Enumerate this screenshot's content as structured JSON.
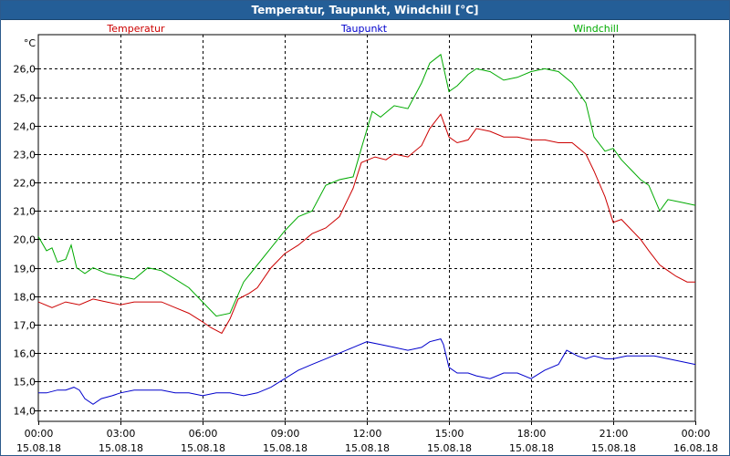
{
  "window": {
    "title": "Temperatur, Taupunkt, Windchill [°C]"
  },
  "chart_data": {
    "type": "line",
    "title": "Temperatur, Taupunkt, Windchill [°C]",
    "ylabel": "°C",
    "ylim": [
      13.6,
      27.2
    ],
    "yticks": [
      14.0,
      15.0,
      16.0,
      17.0,
      18.0,
      19.0,
      20.0,
      21.0,
      22.0,
      23.0,
      24.0,
      25.0,
      26.0
    ],
    "ytick_labels": [
      "14,0",
      "15,0",
      "16,0",
      "17,0",
      "18,0",
      "19,0",
      "20,0",
      "21,0",
      "22,0",
      "23,0",
      "24,0",
      "25,0",
      "26,0"
    ],
    "xlim": [
      0,
      24
    ],
    "xticks": [
      0,
      3,
      6,
      9,
      12,
      15,
      18,
      21,
      24
    ],
    "xtick_labels": [
      [
        "00:00",
        "15.08.18"
      ],
      [
        "03:00",
        "15.08.18"
      ],
      [
        "06:00",
        "15.08.18"
      ],
      [
        "09:00",
        "15.08.18"
      ],
      [
        "12:00",
        "15.08.18"
      ],
      [
        "15:00",
        "15.08.18"
      ],
      [
        "18:00",
        "15.08.18"
      ],
      [
        "21:00",
        "15.08.18"
      ],
      [
        "00:00",
        "16.08.18"
      ]
    ],
    "grid": true,
    "x_unit": "hours since 15.08.18 00:00",
    "series": [
      {
        "name": "Temperatur",
        "color": "#cc0000",
        "points": [
          [
            0.0,
            17.8
          ],
          [
            0.5,
            17.6
          ],
          [
            1.0,
            17.8
          ],
          [
            1.5,
            17.7
          ],
          [
            2.0,
            17.9
          ],
          [
            2.5,
            17.8
          ],
          [
            3.0,
            17.7
          ],
          [
            3.5,
            17.8
          ],
          [
            4.0,
            17.8
          ],
          [
            4.5,
            17.8
          ],
          [
            5.0,
            17.6
          ],
          [
            5.5,
            17.4
          ],
          [
            6.0,
            17.1
          ],
          [
            6.3,
            16.9
          ],
          [
            6.7,
            16.7
          ],
          [
            7.0,
            17.2
          ],
          [
            7.3,
            17.9
          ],
          [
            7.7,
            18.1
          ],
          [
            8.0,
            18.3
          ],
          [
            8.5,
            19.0
          ],
          [
            9.0,
            19.5
          ],
          [
            9.5,
            19.8
          ],
          [
            10.0,
            20.2
          ],
          [
            10.5,
            20.4
          ],
          [
            11.0,
            20.8
          ],
          [
            11.5,
            21.8
          ],
          [
            11.8,
            22.7
          ],
          [
            12.3,
            22.9
          ],
          [
            12.7,
            22.8
          ],
          [
            13.0,
            23.0
          ],
          [
            13.5,
            22.9
          ],
          [
            14.0,
            23.3
          ],
          [
            14.3,
            23.9
          ],
          [
            14.7,
            24.4
          ],
          [
            15.0,
            23.6
          ],
          [
            15.3,
            23.4
          ],
          [
            15.7,
            23.5
          ],
          [
            16.0,
            23.9
          ],
          [
            16.5,
            23.8
          ],
          [
            17.0,
            23.6
          ],
          [
            17.5,
            23.6
          ],
          [
            18.0,
            23.5
          ],
          [
            18.5,
            23.5
          ],
          [
            19.0,
            23.4
          ],
          [
            19.5,
            23.4
          ],
          [
            20.0,
            23.0
          ],
          [
            20.3,
            22.4
          ],
          [
            20.7,
            21.5
          ],
          [
            21.0,
            20.6
          ],
          [
            21.3,
            20.7
          ],
          [
            21.7,
            20.3
          ],
          [
            22.0,
            20.0
          ],
          [
            22.3,
            19.6
          ],
          [
            22.7,
            19.1
          ],
          [
            23.0,
            18.9
          ],
          [
            23.3,
            18.7
          ],
          [
            23.7,
            18.5
          ],
          [
            24.0,
            18.5
          ]
        ]
      },
      {
        "name": "Taupunkt",
        "color": "#0000cc",
        "points": [
          [
            0.0,
            14.6
          ],
          [
            0.3,
            14.6
          ],
          [
            0.7,
            14.7
          ],
          [
            1.0,
            14.7
          ],
          [
            1.3,
            14.8
          ],
          [
            1.5,
            14.7
          ],
          [
            1.7,
            14.4
          ],
          [
            2.0,
            14.2
          ],
          [
            2.3,
            14.4
          ],
          [
            2.7,
            14.5
          ],
          [
            3.0,
            14.6
          ],
          [
            3.5,
            14.7
          ],
          [
            4.0,
            14.7
          ],
          [
            4.5,
            14.7
          ],
          [
            5.0,
            14.6
          ],
          [
            5.5,
            14.6
          ],
          [
            6.0,
            14.5
          ],
          [
            6.5,
            14.6
          ],
          [
            7.0,
            14.6
          ],
          [
            7.5,
            14.5
          ],
          [
            8.0,
            14.6
          ],
          [
            8.5,
            14.8
          ],
          [
            9.0,
            15.1
          ],
          [
            9.5,
            15.4
          ],
          [
            10.0,
            15.6
          ],
          [
            10.5,
            15.8
          ],
          [
            11.0,
            16.0
          ],
          [
            11.5,
            16.2
          ],
          [
            12.0,
            16.4
          ],
          [
            12.5,
            16.3
          ],
          [
            13.0,
            16.2
          ],
          [
            13.5,
            16.1
          ],
          [
            14.0,
            16.2
          ],
          [
            14.3,
            16.4
          ],
          [
            14.7,
            16.5
          ],
          [
            14.8,
            16.3
          ],
          [
            15.0,
            15.5
          ],
          [
            15.3,
            15.3
          ],
          [
            15.7,
            15.3
          ],
          [
            16.0,
            15.2
          ],
          [
            16.5,
            15.1
          ],
          [
            17.0,
            15.3
          ],
          [
            17.5,
            15.3
          ],
          [
            18.0,
            15.1
          ],
          [
            18.5,
            15.4
          ],
          [
            19.0,
            15.6
          ],
          [
            19.3,
            16.1
          ],
          [
            19.7,
            15.9
          ],
          [
            20.0,
            15.8
          ],
          [
            20.3,
            15.9
          ],
          [
            20.7,
            15.8
          ],
          [
            21.0,
            15.8
          ],
          [
            21.5,
            15.9
          ],
          [
            22.0,
            15.9
          ],
          [
            22.5,
            15.9
          ],
          [
            23.0,
            15.8
          ],
          [
            23.5,
            15.7
          ],
          [
            24.0,
            15.6
          ]
        ]
      },
      {
        "name": "Windchill",
        "color": "#00aa00",
        "points": [
          [
            0.0,
            20.1
          ],
          [
            0.3,
            19.6
          ],
          [
            0.5,
            19.7
          ],
          [
            0.7,
            19.2
          ],
          [
            1.0,
            19.3
          ],
          [
            1.2,
            19.8
          ],
          [
            1.4,
            19.0
          ],
          [
            1.7,
            18.8
          ],
          [
            2.0,
            19.0
          ],
          [
            2.5,
            18.8
          ],
          [
            3.0,
            18.7
          ],
          [
            3.5,
            18.6
          ],
          [
            4.0,
            19.0
          ],
          [
            4.5,
            18.9
          ],
          [
            5.0,
            18.6
          ],
          [
            5.5,
            18.3
          ],
          [
            6.0,
            17.8
          ],
          [
            6.5,
            17.3
          ],
          [
            7.0,
            17.4
          ],
          [
            7.5,
            18.5
          ],
          [
            8.0,
            19.1
          ],
          [
            8.5,
            19.7
          ],
          [
            9.0,
            20.3
          ],
          [
            9.5,
            20.8
          ],
          [
            10.0,
            21.0
          ],
          [
            10.5,
            21.9
          ],
          [
            11.0,
            22.1
          ],
          [
            11.5,
            22.2
          ],
          [
            11.8,
            23.2
          ],
          [
            12.2,
            24.5
          ],
          [
            12.5,
            24.3
          ],
          [
            13.0,
            24.7
          ],
          [
            13.5,
            24.6
          ],
          [
            14.0,
            25.5
          ],
          [
            14.3,
            26.2
          ],
          [
            14.7,
            26.5
          ],
          [
            15.0,
            25.2
          ],
          [
            15.3,
            25.4
          ],
          [
            15.7,
            25.8
          ],
          [
            16.0,
            26.0
          ],
          [
            16.5,
            25.9
          ],
          [
            17.0,
            25.6
          ],
          [
            17.5,
            25.7
          ],
          [
            18.0,
            25.9
          ],
          [
            18.5,
            26.0
          ],
          [
            19.0,
            25.9
          ],
          [
            19.5,
            25.5
          ],
          [
            20.0,
            24.8
          ],
          [
            20.3,
            23.6
          ],
          [
            20.7,
            23.1
          ],
          [
            21.0,
            23.2
          ],
          [
            21.3,
            22.8
          ],
          [
            21.7,
            22.4
          ],
          [
            22.0,
            22.1
          ],
          [
            22.3,
            21.9
          ],
          [
            22.7,
            21.0
          ],
          [
            23.0,
            21.4
          ],
          [
            23.5,
            21.3
          ],
          [
            24.0,
            21.2
          ]
        ]
      }
    ]
  }
}
